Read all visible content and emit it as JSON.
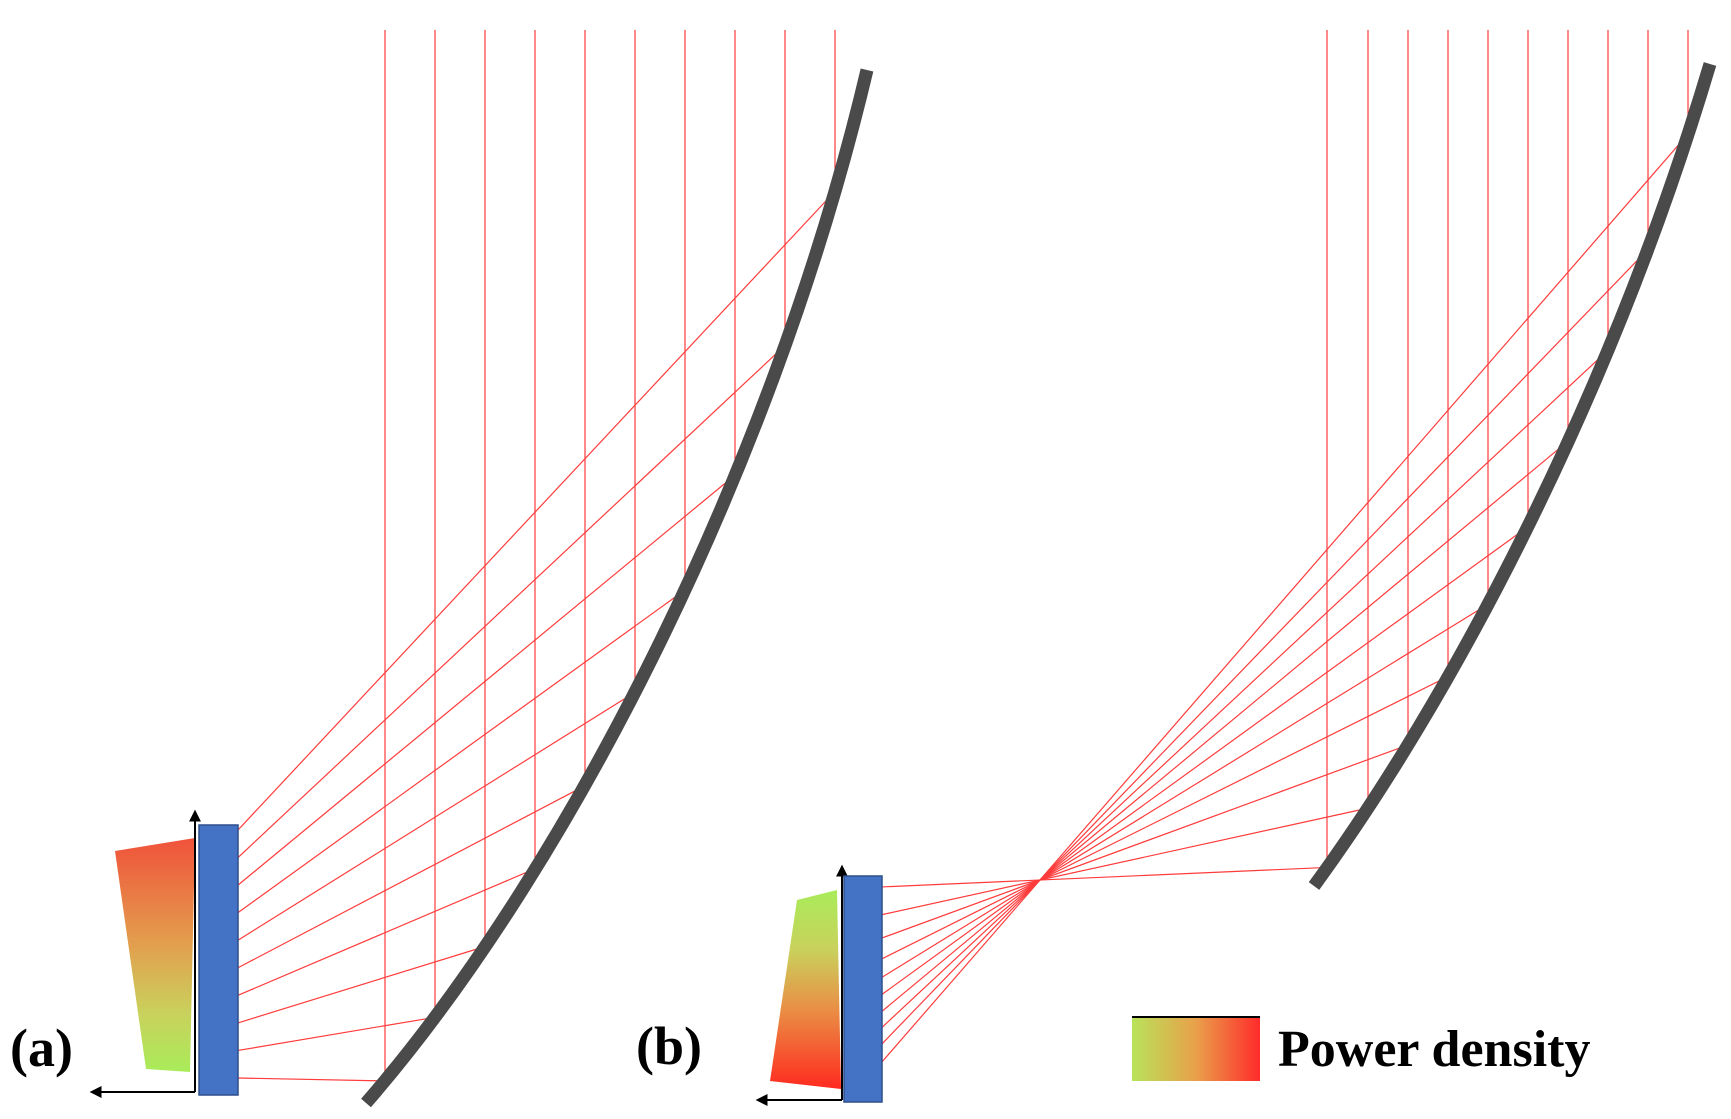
{
  "panels": [
    {
      "id": "a",
      "label": "(a)"
    },
    {
      "id": "b",
      "label": "(b)"
    }
  ],
  "legend": {
    "label": "Power density",
    "gradient_low_color": "#b8e35a",
    "gradient_high_color": "#ff2b2b"
  },
  "colors": {
    "ray": "#ff3b3b",
    "mirror": "#4a4a4a",
    "receiver": "#4472c4",
    "density_low": "#b8e35a",
    "density_mid": "#e9a04a",
    "density_high": "#f0523a"
  }
}
